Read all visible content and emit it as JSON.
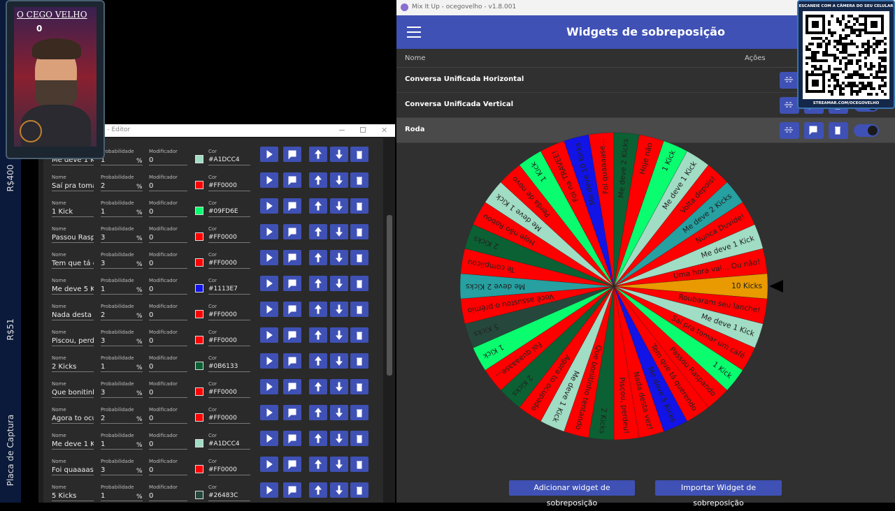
{
  "stream_overlay": {
    "name": "O CEGO VELHO",
    "counter": 0
  },
  "sidebar": {
    "labels": [
      "R$400",
      "R$51",
      "Placa de Captura"
    ]
  },
  "editor": {
    "window_title": "o - Editor",
    "labels": {
      "name": "Nome",
      "probability": "Probabilidade",
      "modifier": "Modificador",
      "color": "Cor",
      "percent": "%"
    },
    "rows": [
      {
        "name": "Me deve 1 K",
        "probability": 1,
        "modifier": 0,
        "color": "#A1DCC4"
      },
      {
        "name": "Saí pra tomar",
        "probability": 2,
        "modifier": 0,
        "color": "#FF0000"
      },
      {
        "name": "1 Kick",
        "probability": 1,
        "modifier": 0,
        "color": "#09FD6E"
      },
      {
        "name": "Passou Raspa",
        "probability": 3,
        "modifier": 0,
        "color": "#FF0000"
      },
      {
        "name": "Tem que tá qu",
        "probability": 3,
        "modifier": 0,
        "color": "#FF0000"
      },
      {
        "name": "Me deve 5 Kic",
        "probability": 1,
        "modifier": 0,
        "color": "#1113E7"
      },
      {
        "name": "Nada desta ve",
        "probability": 2,
        "modifier": 0,
        "color": "#FF0000"
      },
      {
        "name": "Piscou, perde",
        "probability": 3,
        "modifier": 0,
        "color": "#FF0000"
      },
      {
        "name": "2 Kicks",
        "probability": 1,
        "modifier": 0,
        "color": "#0B6133"
      },
      {
        "name": "Que bonitinh",
        "probability": 3,
        "modifier": 0,
        "color": "#FF0000"
      },
      {
        "name": "Agora to ocup",
        "probability": 2,
        "modifier": 0,
        "color": "#FF0000"
      },
      {
        "name": "Me deve 1 Kic",
        "probability": 1,
        "modifier": 0,
        "color": "#A1DCC4"
      },
      {
        "name": "Foi quaaaase",
        "probability": 3,
        "modifier": 0,
        "color": "#FF0000"
      },
      {
        "name": "5 Kicks",
        "probability": 1,
        "modifier": 0,
        "color": "#26483C"
      }
    ]
  },
  "mixitup": {
    "window_title": "Mix It Up - ocegovelho - v1.8.001",
    "header": "Widgets de sobreposição",
    "columns": [
      "Nome",
      "Ações"
    ],
    "widgets": [
      "Conversa Unificada Horizontal",
      "Conversa Unificada Vertical",
      "Roda"
    ],
    "buttons": [
      "Adicionar widget de sobreposição",
      "Importar Widget de sobreposição"
    ]
  },
  "wheel": {
    "segments": [
      {
        "label": "10 Kicks",
        "color": "#E89A00"
      },
      {
        "label": "Roubaram seu lanche!",
        "color": "#FF0000"
      },
      {
        "label": "Me deve 1 Kick",
        "color": "#A1DCC4"
      },
      {
        "label": "Saí pra tomar um café",
        "color": "#FF0000"
      },
      {
        "label": "1 Kick",
        "color": "#09FD6E"
      },
      {
        "label": "Passou Raspando",
        "color": "#FF0000"
      },
      {
        "label": "Tem que tá querendo",
        "color": "#FF0000"
      },
      {
        "label": "Me deve 5 Kicks",
        "color": "#1113E7"
      },
      {
        "label": "Nada desta vez!",
        "color": "#FF0000"
      },
      {
        "label": "Piscou, perdeu!",
        "color": "#FF0000"
      },
      {
        "label": "2 Kicks",
        "color": "#0B6133"
      },
      {
        "label": "Que bonitinho tentando",
        "color": "#FF0000"
      },
      {
        "label": "Me deve 1 Kick",
        "color": "#A1DCC4"
      },
      {
        "label": "Agora to ocupado",
        "color": "#FF0000"
      },
      {
        "label": "2 Kicks",
        "color": "#0B6133"
      },
      {
        "label": "Foi quaaaase...",
        "color": "#FF0000"
      },
      {
        "label": "1 Kick",
        "color": "#09FD6E"
      },
      {
        "label": "5 Kicks",
        "color": "#26483C"
      },
      {
        "label": "Você assustou o prêmio",
        "color": "#FF0000"
      },
      {
        "label": "Me deve 2 Kicks",
        "color": "#26A0A0"
      },
      {
        "label": "Te complicou",
        "color": "#FF0000"
      },
      {
        "label": "2 Kicks",
        "color": "#0B6133"
      },
      {
        "label": "Hoje não Robou",
        "color": "#FF0000"
      },
      {
        "label": "Me deve 1 Kick",
        "color": "#A1DCC4"
      },
      {
        "label": "Perda de novo",
        "color": "#FF0000"
      },
      {
        "label": "1 Kick",
        "color": "#09FD6E"
      },
      {
        "label": "Foi na TRAVEE!",
        "color": "#FF0000"
      },
      {
        "label": "Me deve 10 Kicks",
        "color": "#1113E7"
      },
      {
        "label": "Foi quaaaase...",
        "color": "#FF0000"
      },
      {
        "label": "Me deve 2 Kicks",
        "color": "#0B6133"
      },
      {
        "label": "Hoje não",
        "color": "#FF0000"
      },
      {
        "label": "1 Kick",
        "color": "#09FD6E"
      },
      {
        "label": "Me deve 1 Kick",
        "color": "#A1DCC4"
      },
      {
        "label": "Volta depois!",
        "color": "#FF0000"
      },
      {
        "label": "Me deve 2 Kicks",
        "color": "#26A0A0"
      },
      {
        "label": "Nunca Duvide!",
        "color": "#FF0000"
      },
      {
        "label": "Me deve 1 Kick",
        "color": "#A1DCC4"
      },
      {
        "label": "Uma hora vai... Ou não!",
        "color": "#FF0000"
      }
    ]
  },
  "qr_overlay": {
    "caption": "ESCANEIE COM A CÂMERA DO SEU CELULAR",
    "url": "STREAMAR.COM/OCEGOVELHO"
  }
}
